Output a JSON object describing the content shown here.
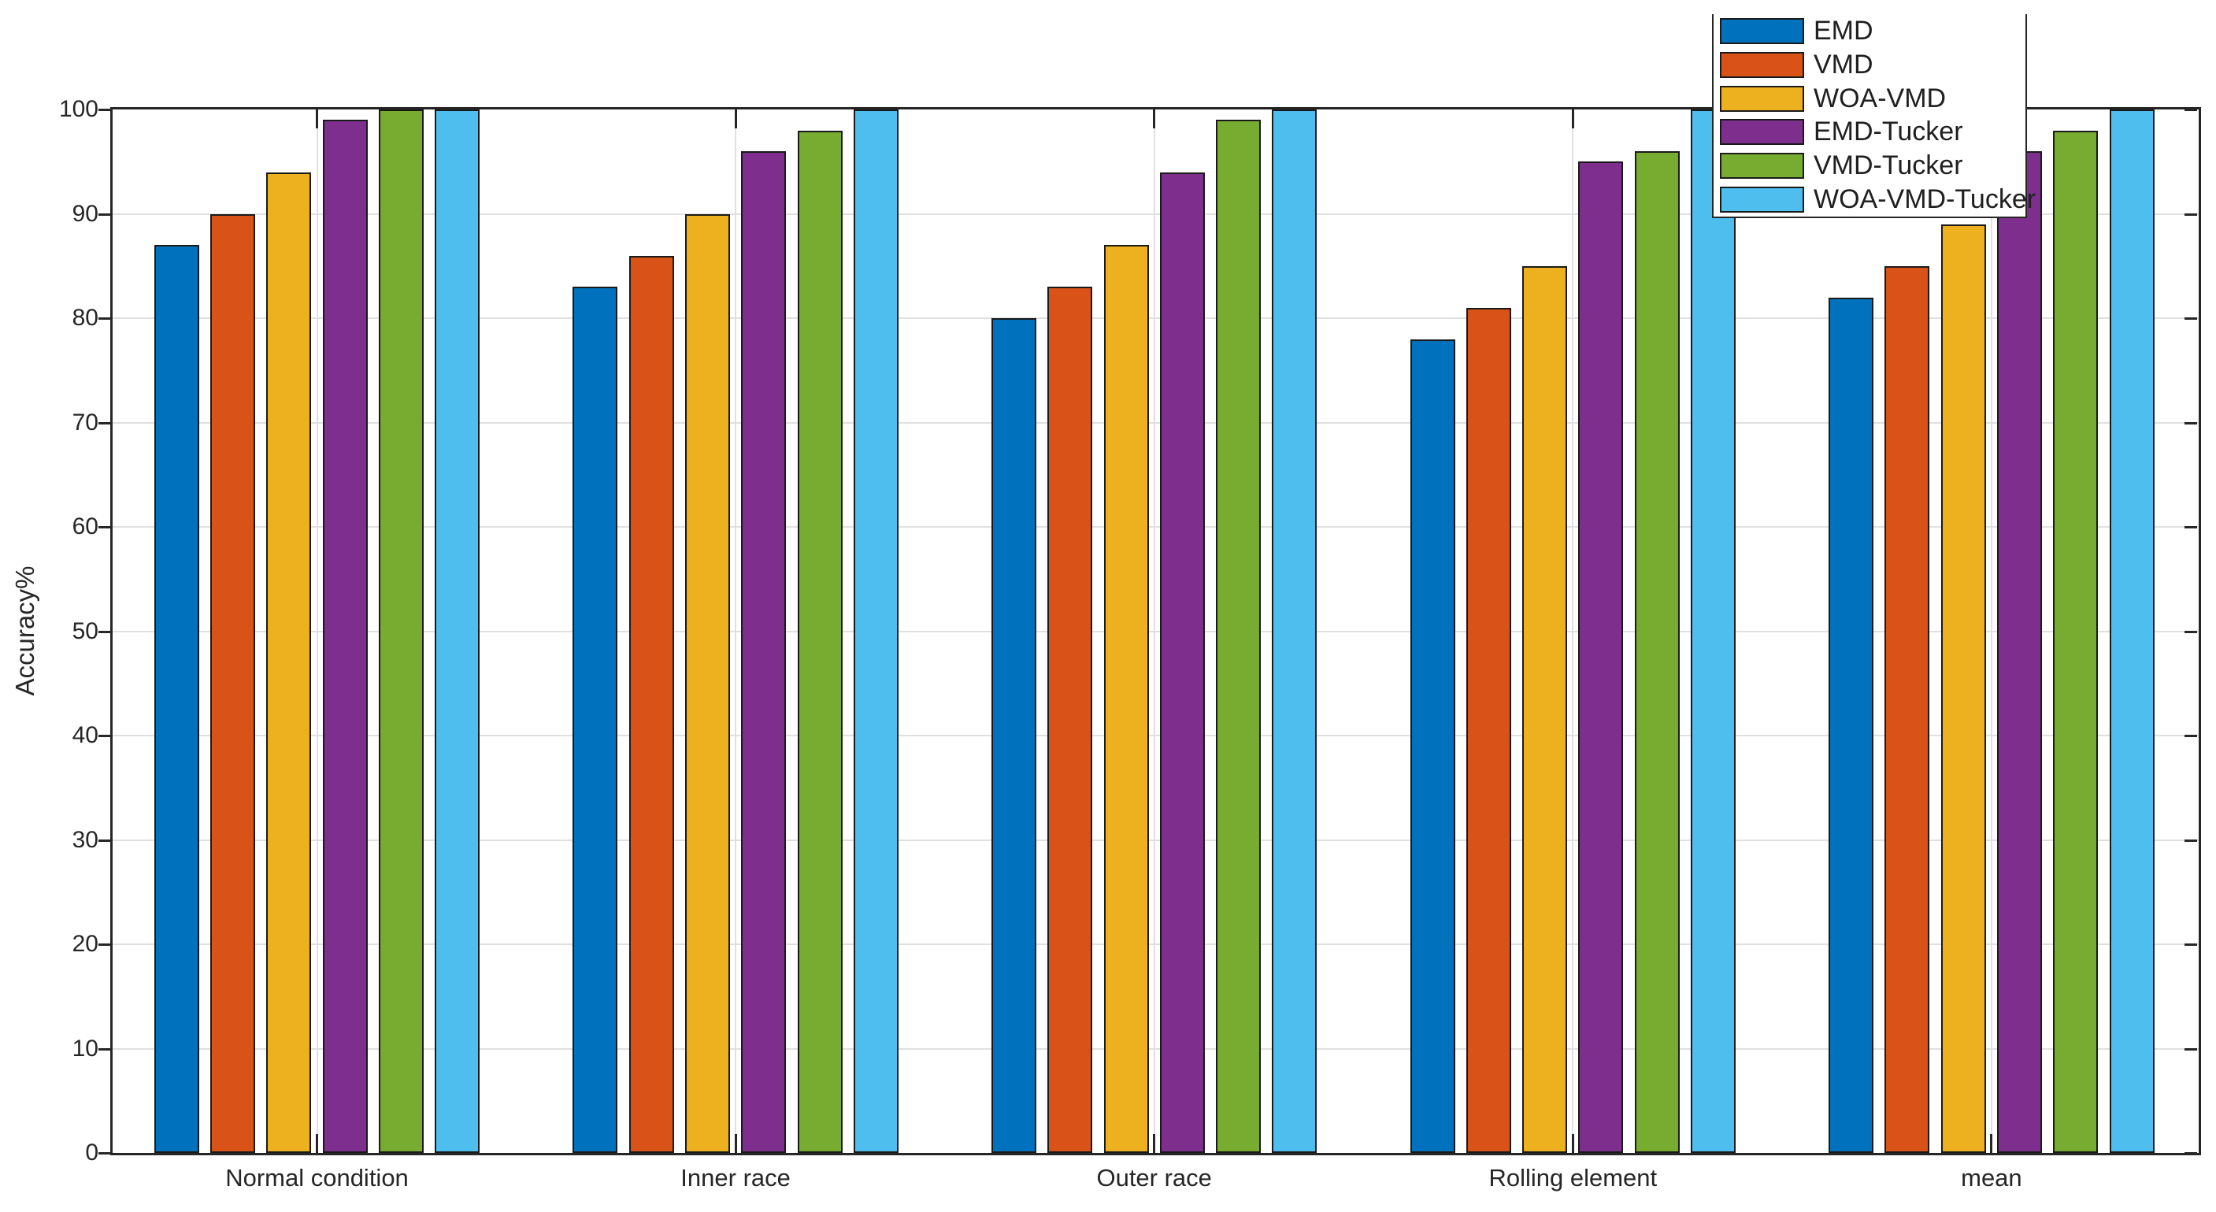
{
  "chart_data": {
    "type": "bar",
    "title": "",
    "xlabel": "",
    "ylabel": "Accuracy%",
    "ylim": [
      0,
      100
    ],
    "ytick_step": 10,
    "grid": "on",
    "grid_color": "#e0e0e0",
    "axis_color": "#262626",
    "bar_edge_color": "#1a1a1a",
    "background_color": "#ffffff",
    "legend_position": "top-right-overlapping",
    "categories": [
      "Normal condition",
      "Inner race",
      "Outer race",
      "Rolling element",
      "mean"
    ],
    "series": [
      {
        "name": "EMD",
        "color": "#0072BD",
        "values": [
          87,
          83,
          80,
          78,
          82
        ]
      },
      {
        "name": "VMD",
        "color": "#D95319",
        "values": [
          90,
          86,
          83,
          81,
          85
        ]
      },
      {
        "name": "WOA-VMD",
        "color": "#EDB120",
        "values": [
          94,
          90,
          87,
          85,
          89
        ]
      },
      {
        "name": "EMD-Tucker",
        "color": "#7E2F8E",
        "values": [
          99,
          96,
          94,
          95,
          96
        ]
      },
      {
        "name": "VMD-Tucker",
        "color": "#77AC30",
        "values": [
          100,
          98,
          99,
          96,
          98
        ]
      },
      {
        "name": "WOA-VMD-Tucker",
        "color": "#4DBEEE",
        "values": [
          100,
          100,
          100,
          100,
          100
        ]
      }
    ]
  }
}
